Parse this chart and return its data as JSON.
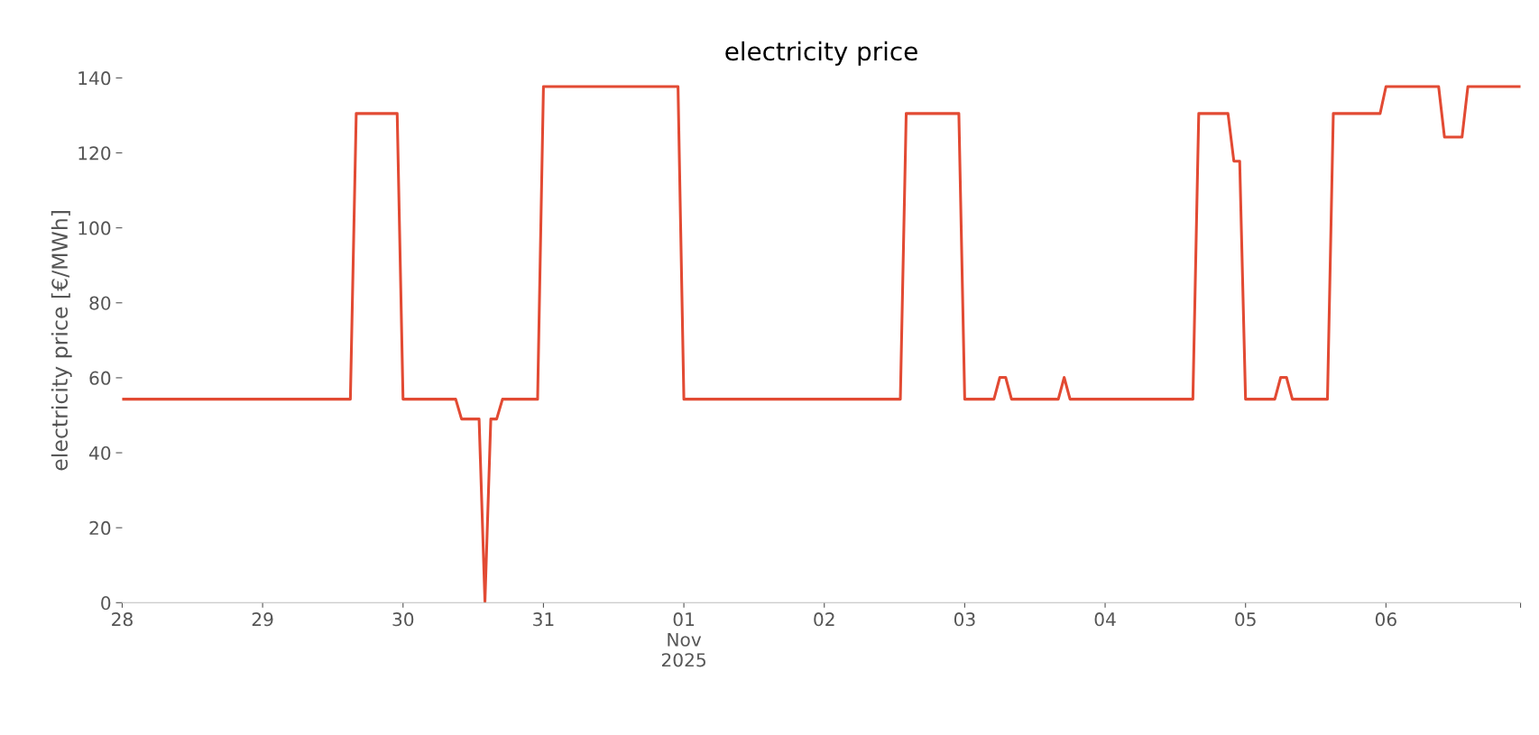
{
  "chart_data": {
    "type": "line",
    "title": "electricity price",
    "ylabel": "electricity price [€/MWh]",
    "x": [
      "2025-10-28T00:00",
      "2025-10-29T15:00",
      "2025-10-29T16:00",
      "2025-10-29T23:00",
      "2025-10-30T00:00",
      "2025-10-30T09:00",
      "2025-10-30T10:00",
      "2025-10-30T13:00",
      "2025-10-30T14:00",
      "2025-10-30T15:00",
      "2025-10-30T16:00",
      "2025-10-30T17:00",
      "2025-10-30T23:00",
      "2025-10-31T00:00",
      "2025-10-31T23:00",
      "2025-11-01T00:00",
      "2025-11-02T13:00",
      "2025-11-02T14:00",
      "2025-11-02T23:00",
      "2025-11-03T00:00",
      "2025-11-03T05:00",
      "2025-11-03T06:00",
      "2025-11-03T07:00",
      "2025-11-03T08:00",
      "2025-11-03T16:00",
      "2025-11-03T17:00",
      "2025-11-03T18:00",
      "2025-11-04T15:00",
      "2025-11-04T16:00",
      "2025-11-04T21:00",
      "2025-11-04T22:00",
      "2025-11-04T23:00",
      "2025-11-05T00:00",
      "2025-11-05T05:00",
      "2025-11-05T06:00",
      "2025-11-05T07:00",
      "2025-11-05T08:00",
      "2025-11-05T14:00",
      "2025-11-05T15:00",
      "2025-11-05T23:00",
      "2025-11-06T00:00",
      "2025-11-06T09:00",
      "2025-11-06T10:00",
      "2025-11-06T13:00",
      "2025-11-06T14:00",
      "2025-11-06T23:00"
    ],
    "series": [
      {
        "color": "#e24a33",
        "values": [
          54.3,
          54.3,
          130.5,
          130.5,
          54.3,
          54.3,
          49.0,
          49.0,
          0.2,
          49.0,
          49.0,
          54.3,
          54.3,
          137.7,
          137.7,
          54.3,
          54.3,
          130.5,
          130.5,
          54.3,
          54.3,
          60.1,
          60.1,
          54.3,
          54.3,
          60.1,
          54.3,
          54.3,
          130.5,
          130.5,
          117.8,
          117.8,
          54.3,
          54.3,
          60.1,
          60.1,
          54.3,
          54.3,
          130.5,
          130.5,
          137.7,
          137.7,
          124.2,
          124.2,
          137.7,
          137.7
        ]
      }
    ],
    "xlim": [
      "2025-10-28T00:00",
      "2025-11-06T23:00"
    ],
    "xticks": [
      {
        "value": "2025-10-28",
        "label": "28"
      },
      {
        "value": "2025-10-29",
        "label": "29"
      },
      {
        "value": "2025-10-30",
        "label": "30"
      },
      {
        "value": "2025-10-31",
        "label": "31"
      },
      {
        "value": "2025-11-01",
        "label": "01\nNov\n2025"
      },
      {
        "value": "2025-11-02",
        "label": "02"
      },
      {
        "value": "2025-11-03",
        "label": "03"
      },
      {
        "value": "2025-11-04",
        "label": "04"
      },
      {
        "value": "2025-11-05",
        "label": "05"
      },
      {
        "value": "2025-11-06",
        "label": "06"
      },
      {
        "value": "2025-11-06T23:00",
        "label": null
      }
    ],
    "ylim": [
      0,
      140
    ],
    "yticks": [
      0,
      20,
      40,
      60,
      80,
      100,
      120,
      140
    ],
    "grid": false,
    "line_style": "solid",
    "marker": "none"
  }
}
